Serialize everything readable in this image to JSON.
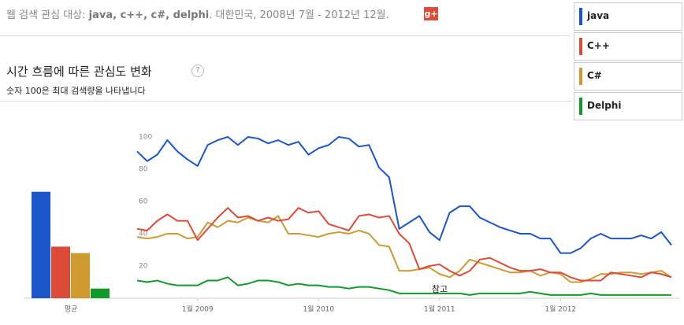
{
  "header": {
    "prefix": "웹 검색 관심 대상: ",
    "terms": "java, c++, c#, delphi",
    "suffix": ". 대한민국, 2008년 7월 - 2012년 12월."
  },
  "section": {
    "title": "시간 흐름에 따른 관심도 변화",
    "help": "?",
    "subtitle": "숫자 100은 최대 검색량을 나타냅니다"
  },
  "chart_data": {
    "type": "line",
    "categories": [
      null,
      null,
      null,
      null,
      null,
      null,
      "1월 2009",
      null,
      null,
      null,
      null,
      null,
      null,
      null,
      null,
      null,
      null,
      null,
      "1월 2010",
      null,
      null,
      null,
      null,
      null,
      null,
      null,
      null,
      null,
      null,
      null,
      "1월 2011",
      null,
      null,
      null,
      null,
      null,
      null,
      null,
      null,
      null,
      null,
      null,
      "1월 2012",
      null,
      null,
      null,
      null,
      null,
      null,
      null,
      null,
      null,
      null,
      null
    ],
    "ylim": [
      0,
      100
    ],
    "yticks": [
      20,
      40,
      60,
      80,
      100
    ],
    "grid": false,
    "average_label": "평균",
    "annotation": "참고",
    "series": [
      {
        "name": "java",
        "color": "#1a56c8",
        "average": 66,
        "values": [
          91,
          85,
          89,
          98,
          91,
          86,
          82,
          95,
          98,
          100,
          95,
          100,
          99,
          96,
          98,
          95,
          97,
          89,
          93,
          95,
          100,
          99,
          94,
          95,
          81,
          75,
          43,
          47,
          51,
          41,
          36,
          53,
          57,
          57,
          50,
          47,
          44,
          42,
          40,
          40,
          37,
          37,
          28,
          28,
          31,
          37,
          40,
          37,
          37,
          37,
          39,
          37,
          41,
          33
        ]
      },
      {
        "name": "C++",
        "color": "#dc4a38",
        "average": 32,
        "values": [
          43,
          42,
          48,
          52,
          48,
          48,
          36,
          43,
          50,
          56,
          50,
          51,
          48,
          50,
          48,
          49,
          56,
          53,
          54,
          46,
          44,
          42,
          51,
          52,
          50,
          51,
          40,
          34,
          18,
          20,
          21,
          17,
          14,
          17,
          24,
          25,
          22,
          19,
          17,
          17,
          18,
          16,
          16,
          13,
          11,
          11,
          11,
          16,
          15,
          14,
          13,
          16,
          15,
          13
        ]
      },
      {
        "name": "C#",
        "color": "#cf9a32",
        "average": 28,
        "values": [
          38,
          37,
          38,
          40,
          40,
          37,
          38,
          47,
          44,
          48,
          47,
          50,
          48,
          47,
          51,
          40,
          40,
          39,
          38,
          40,
          41,
          40,
          42,
          40,
          33,
          32,
          17,
          17,
          18,
          19,
          15,
          13,
          17,
          24,
          22,
          20,
          18,
          16,
          16,
          17,
          14,
          16,
          15,
          10,
          10,
          12,
          15,
          15,
          16,
          16,
          15,
          16,
          17,
          13
        ]
      },
      {
        "name": "Delphi",
        "color": "#109a2a",
        "average": 6,
        "values": [
          11,
          10,
          11,
          9,
          8,
          8,
          8,
          11,
          11,
          13,
          8,
          9,
          11,
          11,
          10,
          8,
          9,
          8,
          8,
          7,
          7,
          6,
          7,
          7,
          6,
          5,
          3,
          3,
          3,
          3,
          3,
          3,
          3,
          2,
          3,
          3,
          3,
          3,
          3,
          4,
          3,
          2,
          2,
          2,
          2,
          3,
          2,
          2,
          2,
          2,
          2,
          2,
          2,
          2
        ]
      }
    ]
  }
}
